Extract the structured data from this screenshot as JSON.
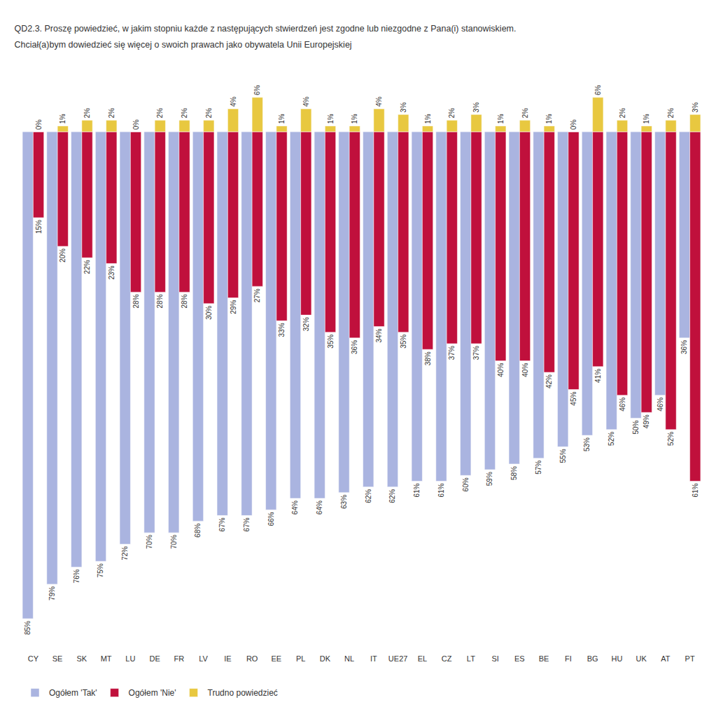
{
  "chart_data": {
    "type": "bar",
    "title": "QD2.3. Proszę powiedzieć, w jakim stopniu każde z następujących stwierdzeń jest zgodne lub niezgodne z Pana(i) stanowiskiem.",
    "subtitle": "Chciał(a)bym dowiedzieć się więcej o swoich prawach jako obywatela Unii Europejskiej",
    "categories": [
      "CY",
      "SE",
      "SK",
      "MT",
      "LU",
      "DE",
      "FR",
      "LV",
      "IE",
      "RO",
      "EE",
      "PL",
      "DK",
      "NL",
      "IT",
      "UE27",
      "EL",
      "CZ",
      "LT",
      "SI",
      "ES",
      "BE",
      "FI",
      "BG",
      "HU",
      "UK",
      "AT",
      "PT"
    ],
    "series": [
      {
        "name": "Ogółem 'Tak'",
        "color": "#aab4e0",
        "values": [
          85,
          79,
          76,
          75,
          72,
          70,
          70,
          68,
          67,
          67,
          66,
          64,
          64,
          63,
          62,
          62,
          61,
          61,
          60,
          59,
          58,
          57,
          55,
          53,
          52,
          50,
          46,
          36
        ],
        "value_labels": [
          "85%",
          "79%",
          "76%",
          "75%",
          "72%",
          "70%",
          "70%",
          "68%",
          "67%",
          "67%",
          "66%",
          "64%",
          "64%",
          "63%",
          "62%",
          "62%",
          "61%",
          "61%",
          "60%",
          "59%",
          "58%",
          "57%",
          "55%",
          "53%",
          "52%",
          "50%",
          "46%",
          "36%"
        ]
      },
      {
        "name": "Ogółem 'Nie'",
        "color": "#c0103c",
        "values": [
          15,
          20,
          22,
          23,
          28,
          28,
          28,
          30,
          29,
          27,
          33,
          32,
          35,
          36,
          34,
          35,
          38,
          37,
          37,
          40,
          40,
          42,
          45,
          41,
          46,
          49,
          52,
          61
        ],
        "value_labels": [
          "15%",
          "20%",
          "22%",
          "23%",
          "28%",
          "28%",
          "28%",
          "30%",
          "29%",
          "27%",
          "33%",
          "32%",
          "35%",
          "36%",
          "34%",
          "35%",
          "38%",
          "37%",
          "37%",
          "40%",
          "40%",
          "42%",
          "45%",
          "41%",
          "46%",
          "49%",
          "52%",
          "61%"
        ]
      },
      {
        "name": "Trudno powiedzieć",
        "color": "#e8c840",
        "axis": "y2",
        "values": [
          0,
          1,
          2,
          2,
          0,
          2,
          2,
          2,
          4,
          6,
          1,
          4,
          1,
          1,
          4,
          3,
          1,
          2,
          3,
          1,
          2,
          1,
          0,
          6,
          2,
          1,
          2,
          3
        ],
        "value_labels": [
          "0%",
          "1%",
          "2%",
          "2%",
          "0%",
          "2%",
          "2%",
          "2%",
          "4%",
          "6%",
          "1%",
          "4%",
          "1%",
          "1%",
          "4%",
          "3%",
          "1%",
          "2%",
          "3%",
          "1%",
          "2%",
          "1%",
          "0%",
          "6%",
          "2%",
          "1%",
          "2%",
          "3%"
        ]
      }
    ],
    "ylim": [
      91,
      -12
    ],
    "y2lim": [
      -91,
      12
    ],
    "data_labels": true,
    "tick_labels": "x",
    "grid": false,
    "legend": "bottom left"
  }
}
